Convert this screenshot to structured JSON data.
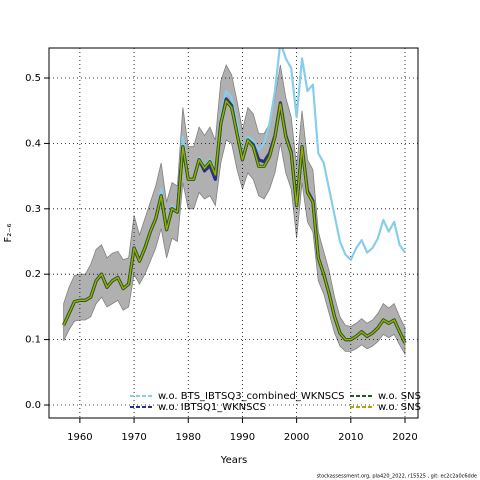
{
  "chart_data": {
    "type": "line",
    "x_label": "Years",
    "y_label": "F₂₋₆",
    "footer": "stockassessment.org, pla420_2022, r15525 , git: ec2c2a0c6dde",
    "x": [
      1957,
      1958,
      1959,
      1960,
      1961,
      1962,
      1963,
      1964,
      1965,
      1966,
      1967,
      1968,
      1969,
      1970,
      1971,
      1972,
      1973,
      1974,
      1975,
      1976,
      1977,
      1978,
      1979,
      1980,
      1981,
      1982,
      1983,
      1984,
      1985,
      1986,
      1987,
      1988,
      1989,
      1990,
      1991,
      1992,
      1993,
      1994,
      1995,
      1996,
      1997,
      1998,
      1999,
      2000,
      2001,
      2002,
      2003,
      2004,
      2005,
      2006,
      2007,
      2008,
      2009,
      2010,
      2011,
      2012,
      2013,
      2014,
      2015,
      2016,
      2017,
      2018,
      2019,
      2020
    ],
    "band": {
      "color": "#b0b0b0",
      "upper": [
        0.155,
        0.18,
        0.198,
        0.2,
        0.2,
        0.215,
        0.238,
        0.245,
        0.225,
        0.232,
        0.235,
        0.222,
        0.225,
        0.29,
        0.26,
        0.285,
        0.31,
        0.335,
        0.37,
        0.31,
        0.34,
        0.335,
        0.455,
        0.395,
        0.395,
        0.425,
        0.412,
        0.425,
        0.405,
        0.495,
        0.52,
        0.505,
        0.465,
        0.42,
        0.455,
        0.445,
        0.415,
        0.415,
        0.43,
        0.47,
        0.52,
        0.47,
        0.44,
        0.365,
        0.45,
        0.375,
        0.36,
        0.265,
        0.235,
        0.205,
        0.165,
        0.135,
        0.122,
        0.12,
        0.125,
        0.132,
        0.125,
        0.13,
        0.14,
        0.155,
        0.148,
        0.155,
        0.135,
        0.118
      ],
      "lower": [
        0.098,
        0.115,
        0.128,
        0.13,
        0.13,
        0.135,
        0.155,
        0.165,
        0.15,
        0.155,
        0.16,
        0.145,
        0.15,
        0.2,
        0.185,
        0.2,
        0.22,
        0.24,
        0.27,
        0.225,
        0.255,
        0.25,
        0.34,
        0.3,
        0.3,
        0.325,
        0.315,
        0.32,
        0.305,
        0.37,
        0.405,
        0.4,
        0.36,
        0.33,
        0.355,
        0.345,
        0.32,
        0.315,
        0.33,
        0.355,
        0.4,
        0.355,
        0.33,
        0.255,
        0.34,
        0.28,
        0.265,
        0.19,
        0.17,
        0.14,
        0.11,
        0.09,
        0.082,
        0.082,
        0.086,
        0.092,
        0.086,
        0.09,
        0.097,
        0.108,
        0.103,
        0.108,
        0.092,
        0.078
      ]
    },
    "series": [
      {
        "name": "w.o. BTS_IBTSQ3_combined_WKNSCS",
        "color": "#87ceeb",
        "values": [
          0.122,
          0.14,
          0.158,
          0.16,
          0.16,
          0.165,
          0.19,
          0.2,
          0.18,
          0.19,
          0.195,
          0.178,
          0.185,
          0.24,
          0.22,
          0.24,
          0.265,
          0.285,
          0.33,
          0.268,
          0.305,
          0.295,
          0.41,
          0.345,
          0.345,
          0.378,
          0.365,
          0.375,
          0.36,
          0.44,
          0.48,
          0.47,
          0.43,
          0.38,
          0.41,
          0.405,
          0.39,
          0.4,
          0.43,
          0.48,
          0.555,
          0.53,
          0.515,
          0.44,
          0.53,
          0.48,
          0.49,
          0.385,
          0.37,
          0.33,
          0.29,
          0.25,
          0.23,
          0.222,
          0.24,
          0.252,
          0.233,
          0.24,
          0.255,
          0.283,
          0.265,
          0.28,
          0.245,
          0.233
        ]
      },
      {
        "name": "w.o. IBTSQ1_WKNSCS",
        "color": "#2b2b8f",
        "values": [
          0.122,
          0.14,
          0.158,
          0.16,
          0.16,
          0.165,
          0.19,
          0.2,
          0.18,
          0.19,
          0.195,
          0.178,
          0.185,
          0.24,
          0.22,
          0.24,
          0.265,
          0.285,
          0.32,
          0.268,
          0.3,
          0.295,
          0.395,
          0.345,
          0.345,
          0.375,
          0.358,
          0.366,
          0.345,
          0.43,
          0.468,
          0.458,
          0.415,
          0.375,
          0.405,
          0.398,
          0.375,
          0.372,
          0.385,
          0.412,
          0.462,
          0.412,
          0.387,
          0.305,
          0.395,
          0.327,
          0.312,
          0.225,
          0.2,
          0.17,
          0.135,
          0.11,
          0.1,
          0.1,
          0.105,
          0.112,
          0.105,
          0.11,
          0.118,
          0.13,
          0.125,
          0.13,
          0.112,
          0.095
        ]
      },
      {
        "name": "w.o. SNS",
        "color": "#1f5f1f",
        "values": [
          0.122,
          0.14,
          0.158,
          0.16,
          0.16,
          0.165,
          0.19,
          0.2,
          0.18,
          0.19,
          0.195,
          0.178,
          0.185,
          0.24,
          0.22,
          0.24,
          0.265,
          0.285,
          0.32,
          0.268,
          0.3,
          0.295,
          0.395,
          0.345,
          0.345,
          0.375,
          0.362,
          0.372,
          0.352,
          0.43,
          0.465,
          0.455,
          0.415,
          0.375,
          0.405,
          0.395,
          0.365,
          0.365,
          0.38,
          0.41,
          0.46,
          0.41,
          0.385,
          0.305,
          0.395,
          0.325,
          0.31,
          0.225,
          0.2,
          0.17,
          0.135,
          0.11,
          0.1,
          0.1,
          0.105,
          0.112,
          0.105,
          0.11,
          0.118,
          0.13,
          0.125,
          0.13,
          0.112,
          0.095
        ]
      },
      {
        "name": "w.o. SNS",
        "color": "#a8a800",
        "values": [
          0.122,
          0.14,
          0.158,
          0.16,
          0.16,
          0.165,
          0.19,
          0.2,
          0.18,
          0.19,
          0.195,
          0.178,
          0.185,
          0.24,
          0.22,
          0.24,
          0.265,
          0.285,
          0.32,
          0.268,
          0.3,
          0.295,
          0.395,
          0.345,
          0.345,
          0.375,
          0.362,
          0.372,
          0.352,
          0.43,
          0.465,
          0.455,
          0.415,
          0.375,
          0.405,
          0.395,
          0.365,
          0.365,
          0.38,
          0.41,
          0.46,
          0.41,
          0.385,
          0.305,
          0.395,
          0.325,
          0.31,
          0.225,
          0.2,
          0.17,
          0.135,
          0.11,
          0.1,
          0.1,
          0.105,
          0.112,
          0.105,
          0.11,
          0.118,
          0.13,
          0.125,
          0.13,
          0.112,
          0.095
        ]
      }
    ],
    "xlim": [
      1954.3,
      2022.4
    ],
    "xticks": [
      1960,
      1970,
      1980,
      1990,
      2000,
      2010,
      2020
    ],
    "ylim": [
      -0.0199,
      0.5459
    ],
    "yticks": [
      {
        "value": 0,
        "label": "0.0"
      },
      {
        "value": 0.1,
        "label": "0.1"
      },
      {
        "value": 0.2,
        "label": "0.2"
      },
      {
        "value": 0.3,
        "label": "0.3"
      },
      {
        "value": 0.4,
        "label": "0.4"
      },
      {
        "value": 0.5,
        "label": "0.5"
      }
    ],
    "grid": true
  }
}
